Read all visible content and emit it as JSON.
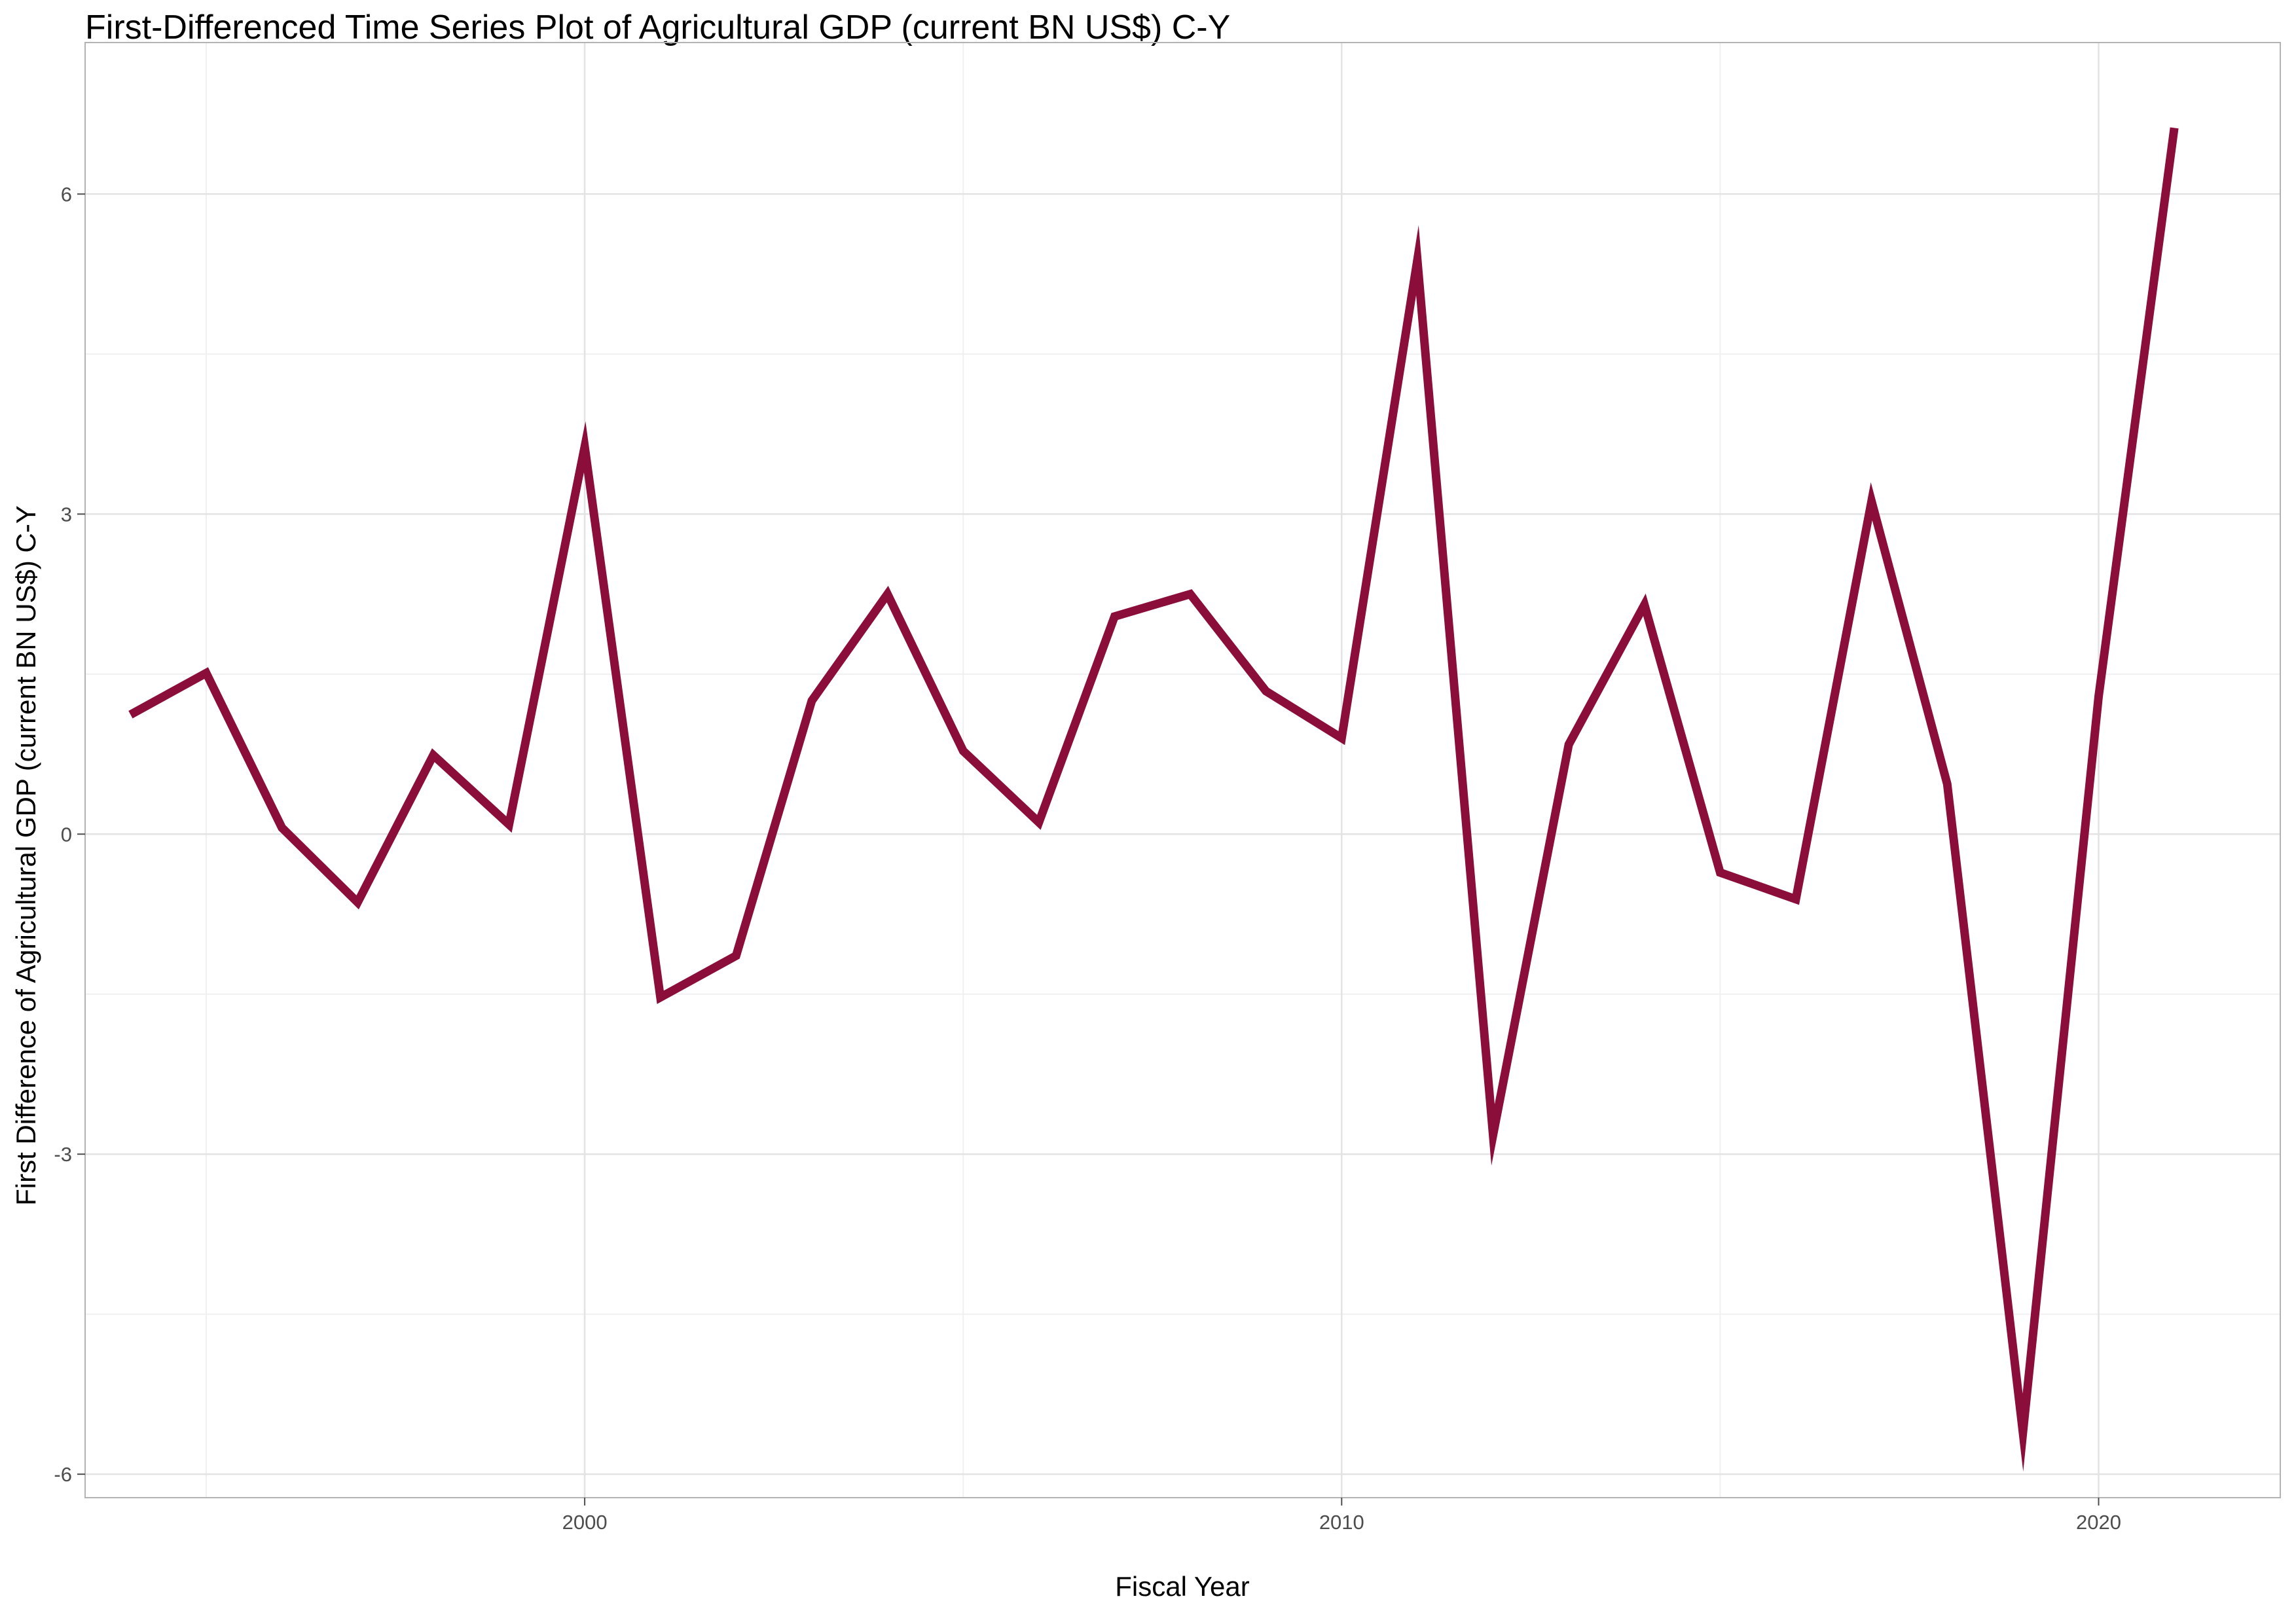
{
  "chart_data": {
    "type": "line",
    "title": "First-Differenced Time Series Plot of Agricultural GDP (current BN US$) C-Y",
    "xlabel": "Fiscal Year",
    "ylabel": "First Difference of Agricultural GDP (current BN US$) C-Y",
    "x_ticks": [
      2000,
      2010,
      2020
    ],
    "y_ticks": [
      -6,
      -3,
      0,
      3,
      6
    ],
    "xlim": [
      1993.4,
      2022.4
    ],
    "ylim": [
      -6.22,
      7.42
    ],
    "grid": true,
    "line_color": "#8B0E3A",
    "series": [
      {
        "x": [
          1994,
          1995,
          1996,
          1997,
          1998,
          1999,
          2000,
          2001,
          2002,
          2003,
          2004,
          2005,
          2006,
          2007,
          2008,
          2009,
          2010,
          2011,
          2012,
          2013,
          2014,
          2015,
          2016,
          2017,
          2018,
          2019,
          2020,
          2021
        ],
        "values": [
          1.12,
          1.51,
          0.06,
          -0.64,
          0.74,
          0.09,
          3.63,
          -1.53,
          -1.14,
          1.25,
          2.25,
          0.78,
          0.11,
          2.04,
          2.25,
          1.34,
          0.9,
          5.38,
          -2.82,
          0.84,
          2.15,
          -0.36,
          -0.61,
          3.12,
          0.47,
          -5.61,
          1.29,
          6.62
        ]
      }
    ]
  }
}
